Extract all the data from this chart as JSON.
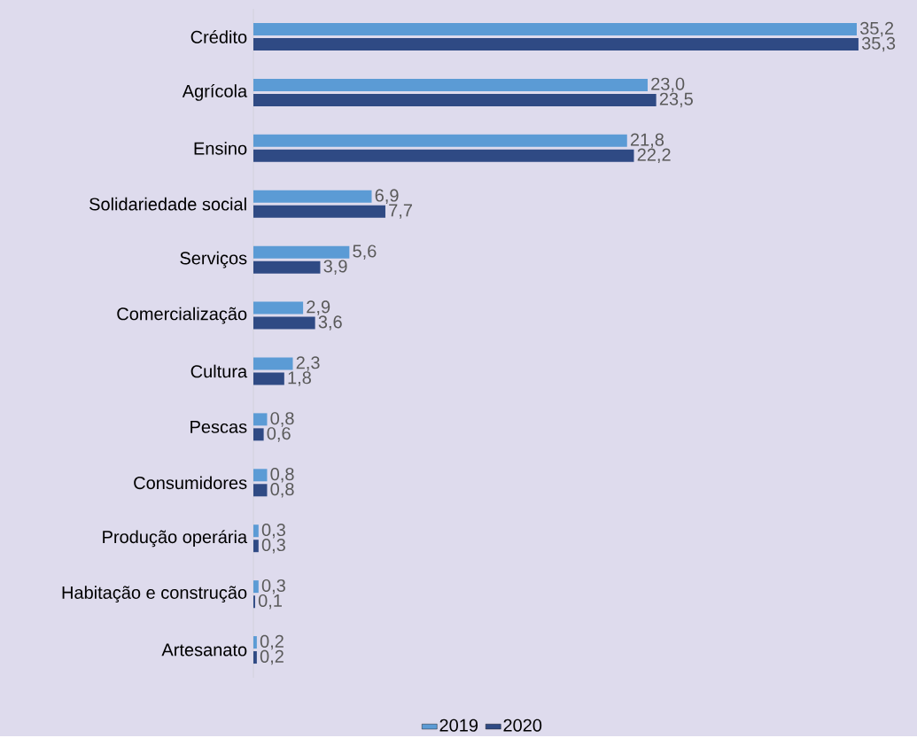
{
  "chart_data": {
    "type": "bar",
    "orientation": "horizontal",
    "categories": [
      "Crédito",
      "Agrícola",
      "Ensino",
      "Solidariedade social",
      "Serviços",
      "Comercialização",
      "Cultura",
      "Pescas",
      "Consumidores",
      "Produção operária",
      "Habitação e construção",
      "Artesanato"
    ],
    "series": [
      {
        "name": "2019",
        "color": "#5b9bd5",
        "values": [
          35.2,
          23.0,
          21.8,
          6.9,
          5.6,
          2.9,
          2.3,
          0.8,
          0.8,
          0.3,
          0.3,
          0.2
        ],
        "value_labels": [
          "35,2",
          "23,0",
          "21,8",
          "6,9",
          "5,6",
          "2,9",
          "2,3",
          "0,8",
          "0,8",
          "0,3",
          "0,3",
          "0,2"
        ]
      },
      {
        "name": "2020",
        "color": "#2f4a84",
        "values": [
          35.3,
          23.5,
          22.2,
          7.7,
          3.9,
          3.6,
          1.8,
          0.6,
          0.8,
          0.3,
          0.1,
          0.2
        ],
        "value_labels": [
          "35,3",
          "23,5",
          "22,2",
          "7,7",
          "3,9",
          "3,6",
          "1,8",
          "0,6",
          "0,8",
          "0,3",
          "0,1",
          "0,2"
        ]
      }
    ],
    "legend": "bottom"
  }
}
